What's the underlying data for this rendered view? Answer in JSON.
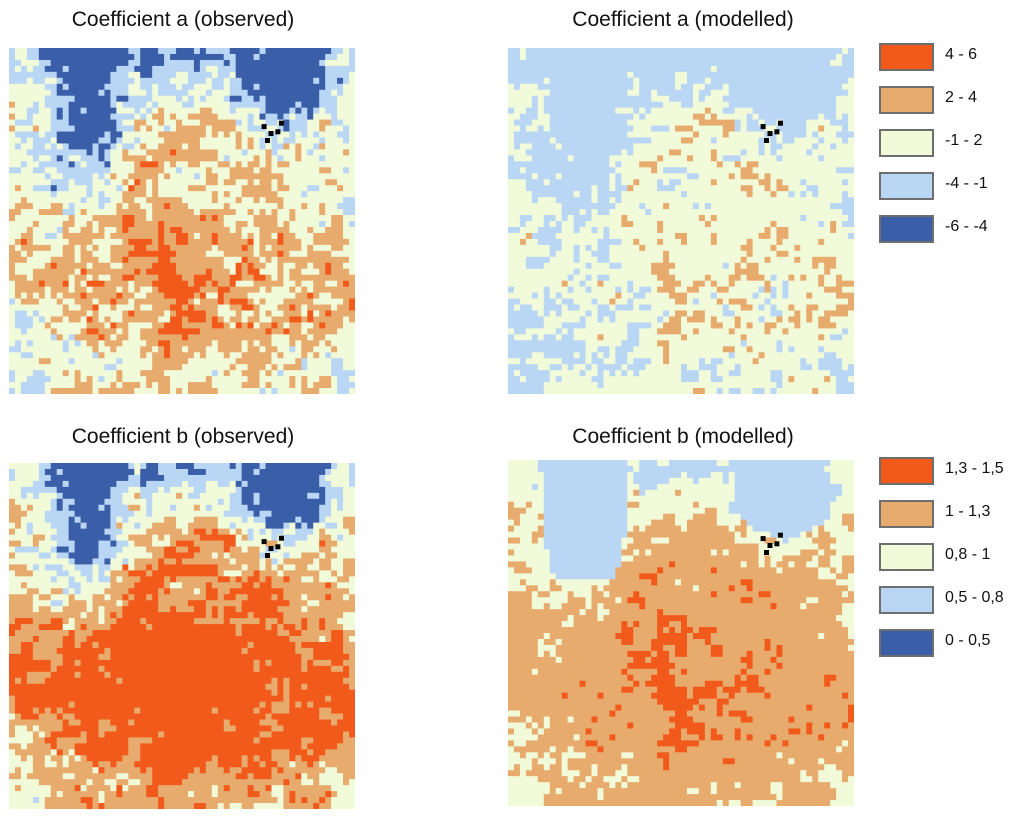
{
  "panels": [
    {
      "title": "Coefficient a (observed)",
      "variant": "a_obs"
    },
    {
      "title": "Coefficient a (modelled)",
      "variant": "a_mod"
    },
    {
      "title": "Coefficient b (observed)",
      "variant": "b_obs"
    },
    {
      "title": "Coefficient b (modelled)",
      "variant": "b_mod"
    }
  ],
  "legend_a": {
    "items": [
      {
        "label": "4 - 6",
        "color": "#f25a1c"
      },
      {
        "label": "2 - 4",
        "color": "#e8ab6e"
      },
      {
        "label": "-1 - 2",
        "color": "#f1fbd9"
      },
      {
        "label": "-4 - -1",
        "color": "#bad6f5"
      },
      {
        "label": "-6 - -4",
        "color": "#3a5ea8"
      }
    ]
  },
  "legend_b": {
    "items": [
      {
        "label": "1,3 - 1,5",
        "color": "#f25a1c"
      },
      {
        "label": "1 - 1,3",
        "color": "#e8ab6e"
      },
      {
        "label": "0,8 - 1",
        "color": "#f1fbd9"
      },
      {
        "label": "0,5 - 0,8",
        "color": "#bad6f5"
      },
      {
        "label": "0 - 0,5",
        "color": "#3a5ea8"
      }
    ]
  }
}
